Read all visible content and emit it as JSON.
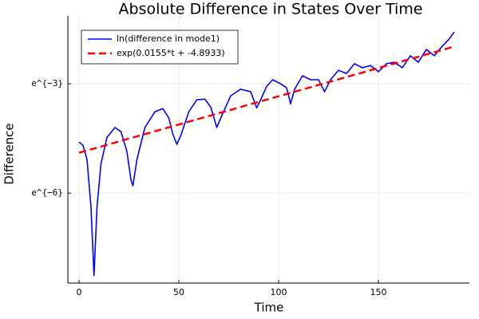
{
  "chart_data": {
    "type": "line",
    "title": "Absolute Difference in States Over Time",
    "xlabel": "Time",
    "ylabel": "Difference",
    "xlim": [
      -5.6,
      195.6
    ],
    "xticks": [
      0,
      50,
      100,
      150
    ],
    "ylim": [
      0.00021,
      0.32
    ],
    "ylog": true,
    "yticks": [
      {
        "value": 0.0497871,
        "label": "e^{−3}"
      },
      {
        "value": 0.00247875,
        "label": "e^{−6}"
      }
    ],
    "grid": true,
    "legend": "top-left",
    "series": [
      {
        "name": "ln(difference in mode1)",
        "color": "#0000ff",
        "style": "solid",
        "x": [
          0,
          2,
          4,
          6,
          7.5,
          9,
          11,
          14,
          18,
          21,
          24,
          26,
          27,
          29,
          33,
          38,
          42,
          45,
          47,
          49,
          51,
          55,
          59,
          63,
          66,
          69,
          71,
          76,
          81,
          86,
          89,
          91,
          94,
          97,
          101,
          104,
          106,
          108,
          112,
          116,
          120,
          123,
          126,
          130,
          134,
          138,
          142,
          146,
          150,
          154,
          158,
          162,
          166,
          170,
          174,
          178,
          182,
          185,
          188
        ],
        "values": [
          0.01005,
          0.00919,
          0.00622,
          0.00168,
          0.000259,
          0.00168,
          0.00557,
          0.01145,
          0.015,
          0.01343,
          0.00775,
          0.00359,
          0.00303,
          0.00622,
          0.015,
          0.0231,
          0.0252,
          0.0195,
          0.01253,
          0.00947,
          0.01203,
          0.0231,
          0.0321,
          0.0327,
          0.0263,
          0.015,
          0.0195,
          0.0358,
          0.0429,
          0.04,
          0.0257,
          0.0321,
          0.0464,
          0.0556,
          0.0498,
          0.0446,
          0.0287,
          0.0429,
          0.062,
          0.0556,
          0.0556,
          0.04,
          0.0556,
          0.0721,
          0.0659,
          0.0863,
          0.0773,
          0.0821,
          0.0693,
          0.0863,
          0.0898,
          0.0773,
          0.1075,
          0.0898,
          0.1275,
          0.1075,
          0.1395,
          0.1653,
          0.206
        ]
      },
      {
        "name": "exp(0.0155*t + -4.8933)",
        "color": "#ff0000",
        "style": "dashed",
        "x": [
          0,
          188
        ],
        "values": [
          0.007502,
          0.1382
        ]
      }
    ]
  }
}
